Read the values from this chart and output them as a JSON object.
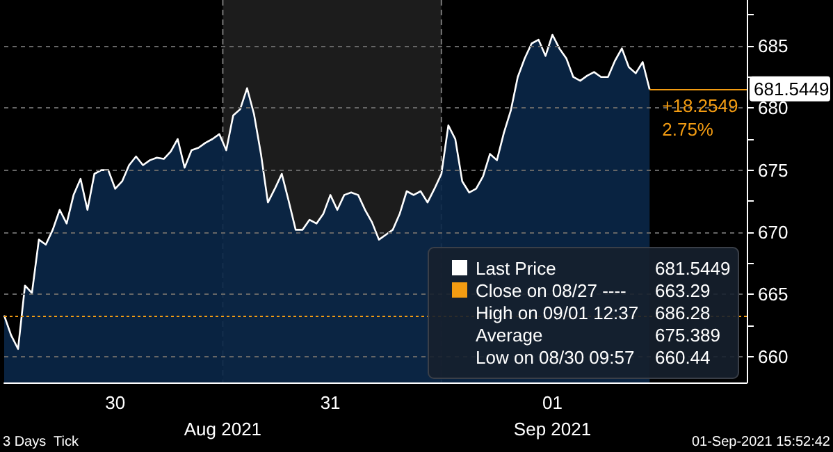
{
  "chart_data": {
    "type": "area",
    "categories": [
      null,
      null,
      null,
      null,
      null,
      null,
      null,
      null,
      null,
      null,
      null,
      null,
      null,
      null,
      null,
      null,
      "30",
      null,
      null,
      null,
      null,
      null,
      null,
      null,
      null,
      null,
      null,
      null,
      null,
      null,
      null,
      null,
      null,
      null,
      null,
      null,
      null,
      null,
      null,
      null,
      null,
      null,
      null,
      null,
      null,
      null,
      null,
      "31",
      null,
      null,
      null,
      null,
      null,
      null,
      null,
      null,
      null,
      null,
      null,
      null,
      null,
      null,
      null,
      null,
      null,
      null,
      null,
      null,
      null,
      null,
      null,
      null,
      null,
      null,
      null,
      null,
      null,
      null,
      null,
      "01",
      null,
      null,
      null,
      null,
      null,
      null,
      null,
      null,
      null,
      null,
      null,
      null,
      null,
      null,
      null,
      null,
      null,
      null,
      null,
      null,
      null,
      null,
      null,
      null,
      null,
      null,
      null,
      null
    ],
    "series": [
      {
        "name": "Last Price",
        "color": "#ffffff",
        "values": [
          663.3,
          661.7,
          660.6,
          665.7,
          665.1,
          669.4,
          669.0,
          670.2,
          671.8,
          670.7,
          673.0,
          674.3,
          671.8,
          674.7,
          675.0,
          675.0,
          673.5,
          674.1,
          675.4,
          676.1,
          675.4,
          675.8,
          676.0,
          675.9,
          676.5,
          677.5,
          675.2,
          676.6,
          676.8,
          677.2,
          677.5,
          677.9,
          676.6,
          679.4,
          679.9,
          681.6,
          679.5,
          676.3,
          672.4,
          673.5,
          674.7,
          672.5,
          670.2,
          670.2,
          671.0,
          670.7,
          671.5,
          673.0,
          671.8,
          673.0,
          673.2,
          673.0,
          671.8,
          670.8,
          669.4,
          669.8,
          670.2,
          671.5,
          673.3,
          673.0,
          673.3,
          672.4,
          673.5,
          674.7,
          678.6,
          677.5,
          674.1,
          673.2,
          673.5,
          674.5,
          676.3,
          675.8,
          678.0,
          679.8,
          682.5,
          684.0,
          685.2,
          685.5,
          684.2,
          685.9,
          684.8,
          684.0,
          682.5,
          682.2,
          682.6,
          682.9,
          682.5,
          682.5,
          683.8,
          684.8,
          683.3,
          682.8,
          683.7,
          681.5,
          null,
          null,
          null,
          null,
          null,
          null,
          null,
          null,
          null,
          null,
          null,
          null,
          null,
          null
        ]
      }
    ],
    "ylim": [
      657.9,
      688.7
    ],
    "yticks": [
      660,
      {
        "value": 662.5,
        "label": null
      },
      665,
      {
        "value": 667.5,
        "label": null
      },
      670,
      {
        "value": 672.5,
        "label": null
      },
      675,
      {
        "value": 677.5,
        "label": null
      },
      680,
      {
        "value": 682.5,
        "label": null
      },
      685,
      {
        "value": 687.5,
        "label": null
      }
    ],
    "grid": true,
    "legend": "bottom right",
    "marker": "none",
    "line_style": "solid",
    "ref_lines": [
      {
        "axis": "y",
        "value": 663.29,
        "label": "Close on 08/27 ----",
        "color": "#f39c12",
        "line_style": "dotted"
      },
      {
        "axis": "y",
        "value": 681.5449,
        "label": "681.5449",
        "color": "#f39c12",
        "line_style": "solid"
      }
    ],
    "annotations": [
      "+18.2549",
      "2.75%",
      "High on 09/01 12:37",
      "686.28",
      "Average",
      "675.389",
      "Low on 08/30 09:57",
      "660.44",
      "Aug 2021",
      "Sep 2021",
      "3 Days  Tick",
      "01-Sep-2021 15:52:42",
      "663.29"
    ]
  }
}
